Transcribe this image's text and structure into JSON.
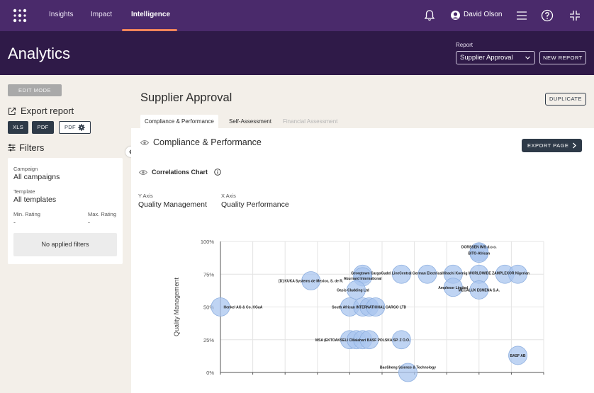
{
  "nav": {
    "items": [
      {
        "label": "Insights",
        "active": false
      },
      {
        "label": "Impact",
        "active": false
      },
      {
        "label": "Intelligence",
        "active": true
      }
    ],
    "user_name": "David Olson",
    "accent": "#f0845a",
    "background": "#4a2a6b"
  },
  "header": {
    "title": "Analytics",
    "report_label": "Report",
    "report_value": "Supplier Approval",
    "new_report_label": "NEW REPORT",
    "background": "#2f1a48"
  },
  "sidebar": {
    "edit_mode_label": "EDIT MODE",
    "export_title": "Export report",
    "export_buttons": [
      "XLS",
      "PDF",
      "PDF"
    ],
    "filters_title": "Filters",
    "filters": {
      "campaign_label": "Campaign",
      "campaign_value": "All campaigns",
      "template_label": "Template",
      "template_value": "All templates",
      "min_rating_label": "Min. Rating",
      "min_rating_value": "-",
      "max_rating_label": "Max. Rating",
      "max_rating_value": "-",
      "empty_label": "No applied filters"
    }
  },
  "main": {
    "title": "Supplier Approval",
    "duplicate_label": "DUPLICATE",
    "tabs": [
      {
        "label": "Compliance & Performance",
        "state": "active"
      },
      {
        "label": "Self-Assessment",
        "state": "normal"
      },
      {
        "label": "Financial Assessment",
        "state": "disabled"
      }
    ],
    "section_title": "Compliance & Performance",
    "export_page_label": "EXPORT PAGE",
    "chart_title": "Correlations Chart",
    "y_axis_label": "Y Axis",
    "y_axis_value": "Quality Management",
    "x_axis_label": "X Axis",
    "x_axis_value": "Quality Performance"
  },
  "chart_data": {
    "type": "scatter",
    "ylabel": "Quality Management",
    "y_ticks": [
      "100%",
      "75%",
      "50%",
      "25%",
      "0%"
    ],
    "ylim": [
      0,
      100
    ],
    "xlim": [
      0,
      100
    ],
    "bubble_color": "#aac6ef",
    "points": [
      {
        "label": "DORSSEN IMS d.o.o.",
        "x": 80,
        "y": 92
      },
      {
        "label": "BITO-African",
        "x": 80,
        "y": 91
      },
      {
        "label": "[D] KUKA Systems de Mexico, S. de R.",
        "x": 28,
        "y": 70
      },
      {
        "label": "Georgtown Cargo",
        "x": 44,
        "y": 75
      },
      {
        "label": "Akurnard International",
        "x": 44,
        "y": 73
      },
      {
        "label": "Gudel LineCentral",
        "x": 56,
        "y": 75
      },
      {
        "label": "German Electrical",
        "x": 64,
        "y": 75
      },
      {
        "label": "Hitachi",
        "x": 72,
        "y": 75
      },
      {
        "label": "Koenig WORLDWIDE",
        "x": 80,
        "y": 75
      },
      {
        "label": "ZAMPLEXOR",
        "x": 88,
        "y": 75
      },
      {
        "label": "Nigerian",
        "x": 92,
        "y": 75
      },
      {
        "label": "Amplexor Limited",
        "x": 72,
        "y": 65
      },
      {
        "label": "MECALUX ESMENA S.A.",
        "x": 80,
        "y": 63
      },
      {
        "label": "Oasis Cladding Ltd",
        "x": 42,
        "y": 63
      },
      {
        "label": "Henkel AG & Co. KGaA",
        "x": 0,
        "y": 50
      },
      {
        "label": "South African",
        "x": 40,
        "y": 50
      },
      {
        "label": "INTERNATIONAL",
        "x": 44,
        "y": 50
      },
      {
        "label": "INTERNATIONAL",
        "x": 46,
        "y": 50
      },
      {
        "label": "CARGO LTD",
        "x": 48,
        "y": 50
      },
      {
        "label": "MSA (",
        "x": 40,
        "y": 25
      },
      {
        "label": "EKTOAKSELI",
        "x": 42,
        "y": 25
      },
      {
        "label": "CMalahari",
        "x": 44,
        "y": 25
      },
      {
        "label": "BASF",
        "x": 46,
        "y": 25
      },
      {
        "label": "POLSKA SP. Z O.O.",
        "x": 56,
        "y": 25
      },
      {
        "label": "BASF AB",
        "x": 92,
        "y": 13
      },
      {
        "label": "BaoSheng Science & Technology",
        "x": 58,
        "y": 0
      }
    ],
    "visible_labels": [
      {
        "text": "DORSSEN IMS d.o.o.",
        "x": 80,
        "y": 96
      },
      {
        "text": "BITO-African",
        "x": 80,
        "y": 91
      },
      {
        "text": "[D] KUKA Systems de Mexico, S. de R.",
        "x": 28,
        "y": 70
      },
      {
        "text": "Georgtown CargoGudel LineCentral German ElectricalHitachi Koenig WORLDWIDE ZAMPLEXOR Nigerian",
        "x": 68,
        "y": 76
      },
      {
        "text": "Akurnard International",
        "x": 44,
        "y": 72
      },
      {
        "text": "Amplexor Limited",
        "x": 72,
        "y": 65
      },
      {
        "text": "MECALUX ESMENA S.A.",
        "x": 80,
        "y": 63
      },
      {
        "text": "Oasis Cladding Ltd",
        "x": 41,
        "y": 63
      },
      {
        "text": "Henkel AG & Co. KGaA",
        "x": 7,
        "y": 50
      },
      {
        "text": "South African INTERNATIONAL CARGO LTD",
        "x": 46,
        "y": 50
      },
      {
        "text": "MSA (EKTOAKSELI CMalahari BASF POLSKA SP. Z O.O.",
        "x": 44,
        "y": 25
      },
      {
        "text": "BASF AB",
        "x": 92,
        "y": 13
      },
      {
        "text": "BaoSheng Science & Technology",
        "x": 58,
        "y": 4
      }
    ]
  }
}
